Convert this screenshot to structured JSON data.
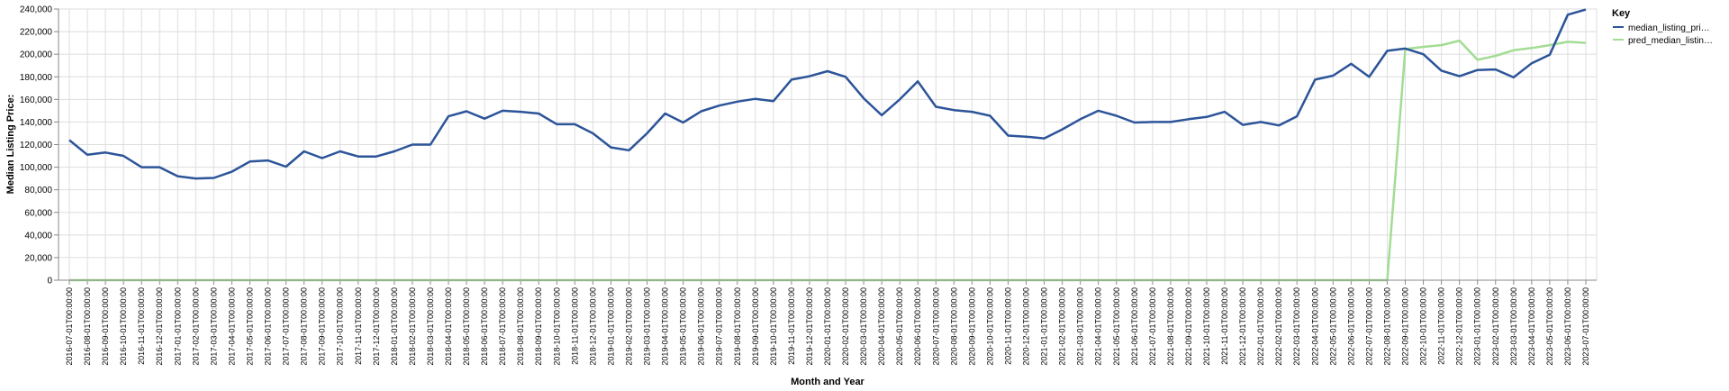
{
  "chart_data": {
    "type": "line",
    "xlabel": "Month and Year",
    "ylabel": "Median Listing Price:",
    "ylim": [
      0,
      240000
    ],
    "y_ticks": [
      "0",
      "20,000",
      "40,000",
      "60,000",
      "80,000",
      "100,000",
      "120,000",
      "140,000",
      "160,000",
      "180,000",
      "200,000",
      "220,000",
      "240,000"
    ],
    "grid": true,
    "legend": {
      "title": "Key",
      "placement": "top-right",
      "entries": [
        "median_listing_pri…",
        "pred_median_listin…"
      ]
    },
    "x": [
      "2016-07-01T00:00:00",
      "2016-08-01T00:00:00",
      "2016-09-01T00:00:00",
      "2016-10-01T00:00:00",
      "2016-11-01T00:00:00",
      "2016-12-01T00:00:00",
      "2017-01-01T00:00:00",
      "2017-02-01T00:00:00",
      "2017-03-01T00:00:00",
      "2017-04-01T00:00:00",
      "2017-05-01T00:00:00",
      "2017-06-01T00:00:00",
      "2017-07-01T00:00:00",
      "2017-08-01T00:00:00",
      "2017-09-01T00:00:00",
      "2017-10-01T00:00:00",
      "2017-11-01T00:00:00",
      "2017-12-01T00:00:00",
      "2018-01-01T00:00:00",
      "2018-02-01T00:00:00",
      "2018-03-01T00:00:00",
      "2018-04-01T00:00:00",
      "2018-05-01T00:00:00",
      "2018-06-01T00:00:00",
      "2018-07-01T00:00:00",
      "2018-08-01T00:00:00",
      "2018-09-01T00:00:00",
      "2018-10-01T00:00:00",
      "2018-11-01T00:00:00",
      "2018-12-01T00:00:00",
      "2019-01-01T00:00:00",
      "2019-02-01T00:00:00",
      "2019-03-01T00:00:00",
      "2019-04-01T00:00:00",
      "2019-05-01T00:00:00",
      "2019-06-01T00:00:00",
      "2019-07-01T00:00:00",
      "2019-08-01T00:00:00",
      "2019-09-01T00:00:00",
      "2019-10-01T00:00:00",
      "2019-11-01T00:00:00",
      "2019-12-01T00:00:00",
      "2020-01-01T00:00:00",
      "2020-02-01T00:00:00",
      "2020-03-01T00:00:00",
      "2020-04-01T00:00:00",
      "2020-05-01T00:00:00",
      "2020-06-01T00:00:00",
      "2020-07-01T00:00:00",
      "2020-08-01T00:00:00",
      "2020-09-01T00:00:00",
      "2020-10-01T00:00:00",
      "2020-11-01T00:00:00",
      "2020-12-01T00:00:00",
      "2021-01-01T00:00:00",
      "2021-02-01T00:00:00",
      "2021-03-01T00:00:00",
      "2021-04-01T00:00:00",
      "2021-05-01T00:00:00",
      "2021-06-01T00:00:00",
      "2021-07-01T00:00:00",
      "2021-08-01T00:00:00",
      "2021-09-01T00:00:00",
      "2021-10-01T00:00:00",
      "2021-11-01T00:00:00",
      "2021-12-01T00:00:00",
      "2022-01-01T00:00:00",
      "2022-02-01T00:00:00",
      "2022-03-01T00:00:00",
      "2022-04-01T00:00:00",
      "2022-05-01T00:00:00",
      "2022-06-01T00:00:00",
      "2022-07-01T00:00:00",
      "2022-08-01T00:00:00",
      "2022-09-01T00:00:00",
      "2022-10-01T00:00:00",
      "2022-11-01T00:00:00",
      "2022-12-01T00:00:00",
      "2023-01-01T00:00:00",
      "2023-02-01T00:00:00",
      "2023-03-01T00:00:00",
      "2023-04-01T00:00:00",
      "2023-05-01T00:00:00",
      "2023-06-01T00:00:00",
      "2023-07-01T00:00:00"
    ],
    "series": [
      {
        "name": "median_listing_pri…",
        "color": "#2c5499",
        "values": [
          124000,
          111000,
          113000,
          110000,
          100000,
          100000,
          92000,
          90000,
          90500,
          96000,
          105000,
          106000,
          100500,
          114000,
          108000,
          114000,
          109500,
          109500,
          114000,
          120000,
          120000,
          145000,
          149500,
          143000,
          150000,
          149000,
          147500,
          138000,
          138000,
          130000,
          117500,
          115000,
          130000,
          147500,
          139500,
          149500,
          154500,
          158000,
          160500,
          158500,
          177500,
          180500,
          185000,
          180000,
          161000,
          146000,
          160000,
          176000,
          153500,
          150500,
          149000,
          145500,
          128000,
          127000,
          125500,
          133500,
          142500,
          150000,
          145500,
          139500,
          140000,
          140000,
          142500,
          144500,
          149000,
          137500,
          140000,
          137000,
          145000,
          177500,
          181000,
          191500,
          180000,
          203000,
          205000,
          200000,
          185500,
          180500,
          186000,
          186500,
          179500,
          192000,
          199500,
          235000,
          239500
        ]
      },
      {
        "name": "pred_median_listin…",
        "color": "#a3dc94",
        "values": [
          0,
          0,
          0,
          0,
          0,
          0,
          0,
          0,
          0,
          0,
          0,
          0,
          0,
          0,
          0,
          0,
          0,
          0,
          0,
          0,
          0,
          0,
          0,
          0,
          0,
          0,
          0,
          0,
          0,
          0,
          0,
          0,
          0,
          0,
          0,
          0,
          0,
          0,
          0,
          0,
          0,
          0,
          0,
          0,
          0,
          0,
          0,
          0,
          0,
          0,
          0,
          0,
          0,
          0,
          0,
          0,
          0,
          0,
          0,
          0,
          0,
          0,
          0,
          0,
          0,
          0,
          0,
          0,
          0,
          0,
          0,
          0,
          0,
          0,
          204500,
          206500,
          208000,
          212000,
          195000,
          198500,
          203500,
          205500,
          208000,
          211000,
          210000
        ]
      }
    ]
  }
}
